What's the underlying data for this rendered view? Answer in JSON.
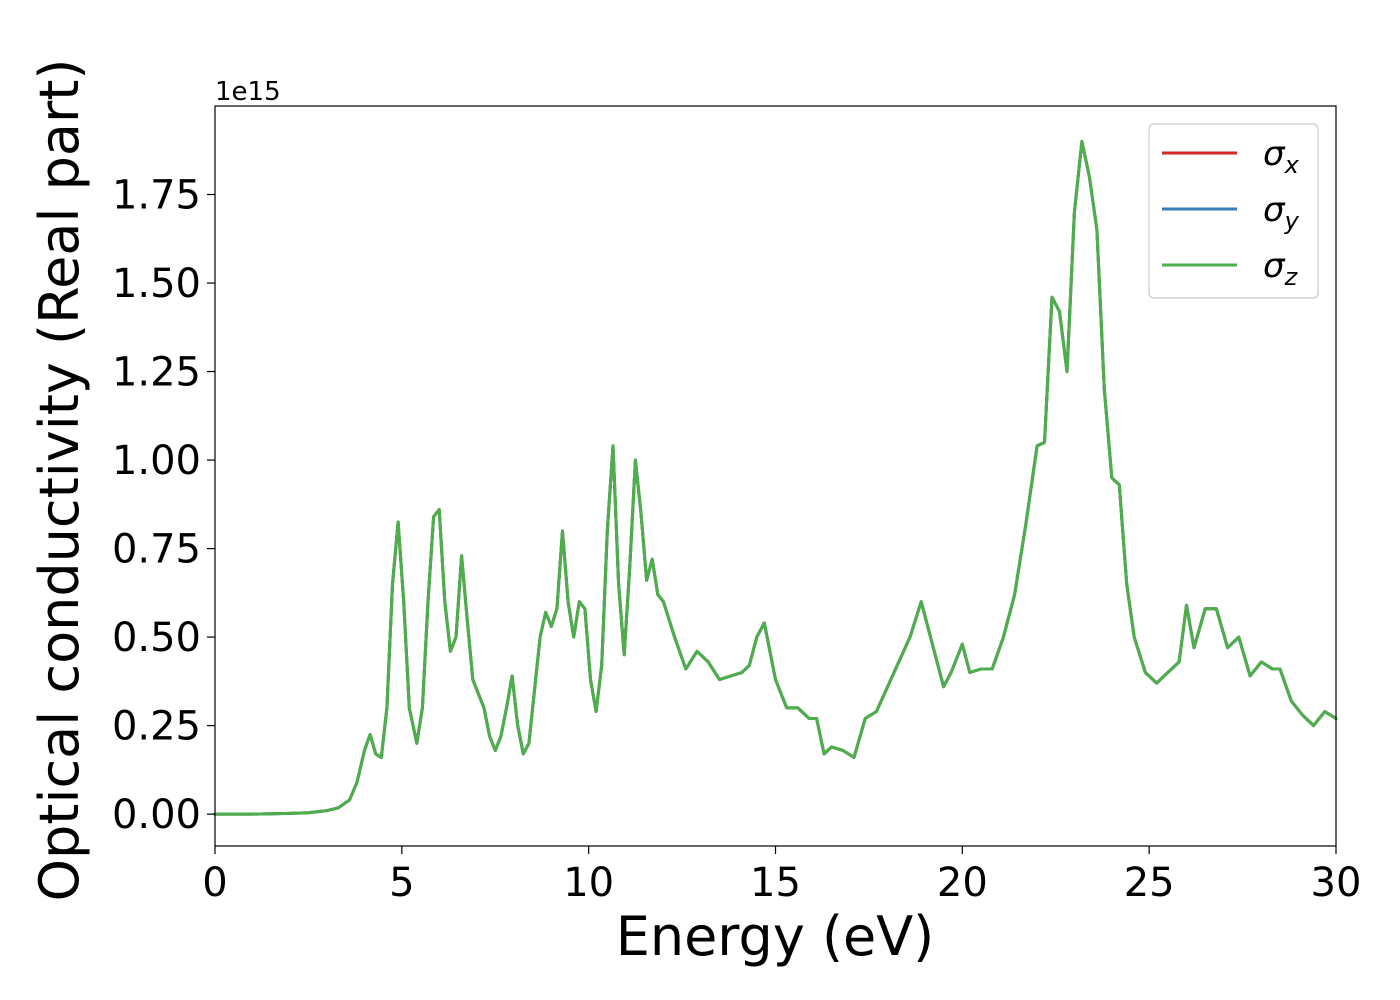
{
  "chart_data": {
    "type": "line",
    "title": "",
    "xlabel": "Energy (eV)",
    "ylabel": "Optical conductivity (Real part)",
    "y_offset_label": "1e15",
    "xlim": [
      0,
      30
    ],
    "ylim": [
      -0.09,
      2.0
    ],
    "xticks": [
      0,
      5,
      10,
      15,
      20,
      25,
      30
    ],
    "xtick_labels": [
      "0",
      "5",
      "10",
      "15",
      "20",
      "25",
      "30"
    ],
    "yticks": [
      0.0,
      0.25,
      0.5,
      0.75,
      1.0,
      1.25,
      1.5,
      1.75
    ],
    "ytick_labels": [
      "0.00",
      "0.25",
      "0.50",
      "0.75",
      "1.00",
      "1.25",
      "1.50",
      "1.75"
    ],
    "grid": false,
    "legend_position": "top-right",
    "x": [
      0,
      1,
      2,
      2.5,
      3,
      3.3,
      3.6,
      3.8,
      4.0,
      4.15,
      4.3,
      4.45,
      4.6,
      4.75,
      4.9,
      5.05,
      5.2,
      5.4,
      5.55,
      5.7,
      5.85,
      6.0,
      6.15,
      6.3,
      6.45,
      6.6,
      6.75,
      6.9,
      7.05,
      7.2,
      7.35,
      7.5,
      7.65,
      7.8,
      7.95,
      8.1,
      8.25,
      8.4,
      8.55,
      8.7,
      8.85,
      9.0,
      9.15,
      9.3,
      9.45,
      9.6,
      9.75,
      9.9,
      10.05,
      10.2,
      10.35,
      10.5,
      10.65,
      10.8,
      10.95,
      11.1,
      11.25,
      11.4,
      11.55,
      11.7,
      11.85,
      12.0,
      12.3,
      12.6,
      12.9,
      13.2,
      13.5,
      13.8,
      14.1,
      14.3,
      14.5,
      14.7,
      15.0,
      15.3,
      15.6,
      15.9,
      16.1,
      16.3,
      16.5,
      16.8,
      17.1,
      17.4,
      17.7,
      18.0,
      18.3,
      18.6,
      18.9,
      19.2,
      19.5,
      19.7,
      20.0,
      20.2,
      20.5,
      20.8,
      21.1,
      21.4,
      21.7,
      22.0,
      22.2,
      22.4,
      22.6,
      22.8,
      23.0,
      23.2,
      23.4,
      23.6,
      23.8,
      24.0,
      24.2,
      24.4,
      24.6,
      24.9,
      25.2,
      25.5,
      25.8,
      26.0,
      26.2,
      26.5,
      26.8,
      27.1,
      27.4,
      27.7,
      28.0,
      28.3,
      28.5,
      28.8,
      29.1,
      29.4,
      29.7,
      30.0
    ],
    "series": [
      {
        "name": "σx",
        "color": "#d62728",
        "values": [
          0,
          0,
          0.002,
          0.004,
          0.01,
          0.018,
          0.04,
          0.09,
          0.18,
          0.225,
          0.17,
          0.16,
          0.3,
          0.65,
          0.825,
          0.6,
          0.3,
          0.2,
          0.3,
          0.6,
          0.84,
          0.86,
          0.6,
          0.46,
          0.5,
          0.73,
          0.55,
          0.38,
          0.34,
          0.3,
          0.22,
          0.18,
          0.22,
          0.3,
          0.39,
          0.25,
          0.17,
          0.2,
          0.35,
          0.5,
          0.57,
          0.53,
          0.58,
          0.8,
          0.6,
          0.5,
          0.6,
          0.58,
          0.38,
          0.29,
          0.42,
          0.8,
          1.04,
          0.65,
          0.45,
          0.7,
          1.0,
          0.85,
          0.66,
          0.72,
          0.62,
          0.6,
          0.5,
          0.41,
          0.46,
          0.43,
          0.38,
          0.39,
          0.4,
          0.42,
          0.5,
          0.54,
          0.38,
          0.3,
          0.3,
          0.27,
          0.27,
          0.17,
          0.19,
          0.18,
          0.16,
          0.27,
          0.29,
          0.36,
          0.43,
          0.5,
          0.6,
          0.48,
          0.36,
          0.4,
          0.48,
          0.4,
          0.41,
          0.41,
          0.5,
          0.62,
          0.82,
          1.04,
          1.05,
          1.46,
          1.42,
          1.25,
          1.7,
          1.9,
          1.8,
          1.65,
          1.2,
          0.95,
          0.93,
          0.65,
          0.5,
          0.4,
          0.37,
          0.4,
          0.43,
          0.59,
          0.47,
          0.58,
          0.58,
          0.47,
          0.5,
          0.39,
          0.43,
          0.41,
          0.41,
          0.32,
          0.28,
          0.25,
          0.29,
          0.27
        ]
      },
      {
        "name": "σy",
        "color": "#377eb8",
        "values": [
          0,
          0,
          0.002,
          0.004,
          0.01,
          0.018,
          0.04,
          0.09,
          0.18,
          0.225,
          0.17,
          0.16,
          0.3,
          0.65,
          0.825,
          0.6,
          0.3,
          0.2,
          0.3,
          0.6,
          0.84,
          0.86,
          0.6,
          0.46,
          0.5,
          0.73,
          0.55,
          0.38,
          0.34,
          0.3,
          0.22,
          0.18,
          0.22,
          0.3,
          0.39,
          0.25,
          0.17,
          0.2,
          0.35,
          0.5,
          0.57,
          0.53,
          0.58,
          0.8,
          0.6,
          0.5,
          0.6,
          0.58,
          0.38,
          0.29,
          0.42,
          0.8,
          1.04,
          0.65,
          0.45,
          0.7,
          1.0,
          0.85,
          0.66,
          0.72,
          0.62,
          0.6,
          0.5,
          0.41,
          0.46,
          0.43,
          0.38,
          0.39,
          0.4,
          0.42,
          0.5,
          0.54,
          0.38,
          0.3,
          0.3,
          0.27,
          0.27,
          0.17,
          0.19,
          0.18,
          0.16,
          0.27,
          0.29,
          0.36,
          0.43,
          0.5,
          0.6,
          0.48,
          0.36,
          0.4,
          0.48,
          0.4,
          0.41,
          0.41,
          0.5,
          0.62,
          0.82,
          1.04,
          1.05,
          1.46,
          1.42,
          1.25,
          1.7,
          1.9,
          1.8,
          1.65,
          1.2,
          0.95,
          0.93,
          0.65,
          0.5,
          0.4,
          0.37,
          0.4,
          0.43,
          0.59,
          0.47,
          0.58,
          0.58,
          0.47,
          0.5,
          0.39,
          0.43,
          0.41,
          0.41,
          0.32,
          0.28,
          0.25,
          0.29,
          0.27
        ]
      },
      {
        "name": "σz",
        "color": "#4daf4a",
        "values": [
          0,
          0,
          0.002,
          0.004,
          0.01,
          0.018,
          0.04,
          0.09,
          0.18,
          0.225,
          0.17,
          0.16,
          0.3,
          0.65,
          0.825,
          0.6,
          0.3,
          0.2,
          0.3,
          0.6,
          0.84,
          0.86,
          0.6,
          0.46,
          0.5,
          0.73,
          0.55,
          0.38,
          0.34,
          0.3,
          0.22,
          0.18,
          0.22,
          0.3,
          0.39,
          0.25,
          0.17,
          0.2,
          0.35,
          0.5,
          0.57,
          0.53,
          0.58,
          0.8,
          0.6,
          0.5,
          0.6,
          0.58,
          0.38,
          0.29,
          0.42,
          0.8,
          1.04,
          0.65,
          0.45,
          0.7,
          1.0,
          0.85,
          0.66,
          0.72,
          0.62,
          0.6,
          0.5,
          0.41,
          0.46,
          0.43,
          0.38,
          0.39,
          0.4,
          0.42,
          0.5,
          0.54,
          0.38,
          0.3,
          0.3,
          0.27,
          0.27,
          0.17,
          0.19,
          0.18,
          0.16,
          0.27,
          0.29,
          0.36,
          0.43,
          0.5,
          0.6,
          0.48,
          0.36,
          0.4,
          0.48,
          0.4,
          0.41,
          0.41,
          0.5,
          0.62,
          0.82,
          1.04,
          1.05,
          1.46,
          1.42,
          1.25,
          1.7,
          1.9,
          1.8,
          1.65,
          1.2,
          0.95,
          0.93,
          0.65,
          0.5,
          0.4,
          0.37,
          0.4,
          0.43,
          0.59,
          0.47,
          0.58,
          0.58,
          0.47,
          0.5,
          0.39,
          0.43,
          0.41,
          0.41,
          0.32,
          0.28,
          0.25,
          0.29,
          0.27
        ]
      }
    ],
    "legend": [
      {
        "symbol": "σ",
        "subscript": "x",
        "color": "#d62728"
      },
      {
        "symbol": "σ",
        "subscript": "y",
        "color": "#377eb8"
      },
      {
        "symbol": "σ",
        "subscript": "z",
        "color": "#4daf4a"
      }
    ]
  }
}
